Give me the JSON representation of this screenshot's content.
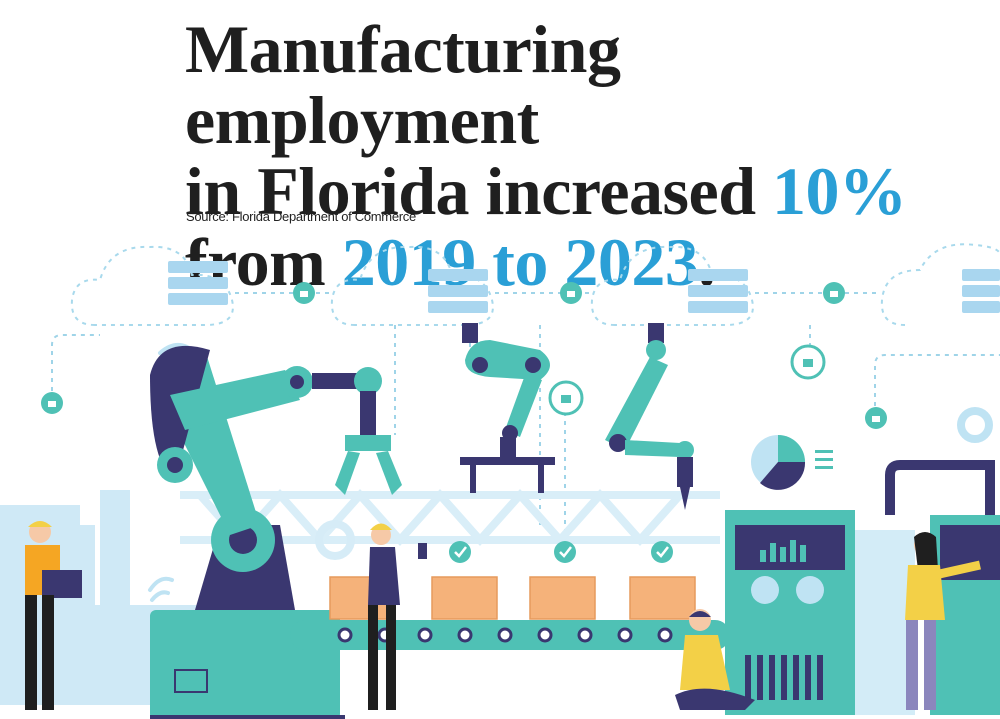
{
  "headline": {
    "line1": "Manufacturing employment",
    "line2_pre": "in Florida increased ",
    "line2_highlight": "10%",
    "line3_pre": "from ",
    "line3_highlight": "2019 to 2023",
    "line3_post": "."
  },
  "source": "Source: Florida Department of Commerce",
  "colors": {
    "text": "#1f1f1f",
    "highlight": "#2a9fd6",
    "teal": "#4fc1b5",
    "navy": "#3a3770",
    "light_blue": "#bfe3f3",
    "box": "#f5b27a"
  },
  "illustration": {
    "icons": [
      "cloud-server-icon",
      "lock-shield-icon",
      "wifi-icon",
      "robotic-arm-icon",
      "conveyor-belt-icon",
      "cardboard-box-icon",
      "checkmark-icon",
      "pie-chart-icon",
      "gear-icon",
      "control-panel-icon",
      "factory-icon",
      "worker-icon",
      "laptop-icon",
      "smartphone-icon"
    ]
  }
}
